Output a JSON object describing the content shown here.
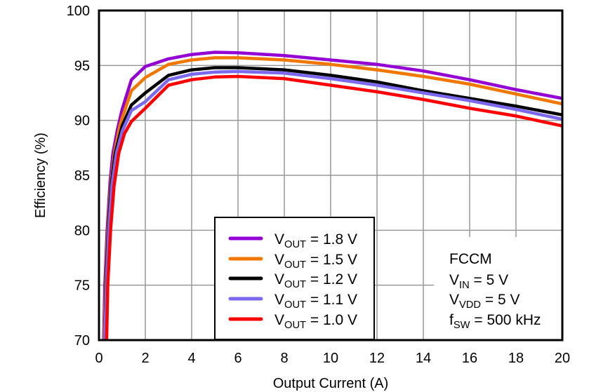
{
  "chart_data": {
    "type": "line",
    "title": "",
    "xlabel": "Output Current (A)",
    "ylabel": "Efficiency (%)",
    "xlim": [
      0,
      20
    ],
    "ylim": [
      70,
      100
    ],
    "xticks": [
      "0",
      "2",
      "4",
      "6",
      "8",
      "10",
      "12",
      "14",
      "16",
      "18",
      "20"
    ],
    "yticks": [
      "70",
      "75",
      "80",
      "85",
      "90",
      "95",
      "100"
    ],
    "grid": true,
    "legend_placement": "bottom-center",
    "series": [
      {
        "name": {
          "main": "V",
          "sub": "OUT",
          "rest": " = 1.8 V"
        },
        "color": "#9400D3",
        "points": [
          [
            0.2,
            70
          ],
          [
            0.25,
            75
          ],
          [
            0.35,
            80
          ],
          [
            0.48,
            84.4
          ],
          [
            0.6,
            87
          ],
          [
            0.8,
            89.2
          ],
          [
            1,
            91
          ],
          [
            1.4,
            93.7
          ],
          [
            2,
            94.9
          ],
          [
            3,
            95.6
          ],
          [
            4,
            96
          ],
          [
            5,
            96.2
          ],
          [
            6,
            96.15
          ],
          [
            8,
            95.9
          ],
          [
            10,
            95.5
          ],
          [
            12,
            95.1
          ],
          [
            14,
            94.5
          ],
          [
            16,
            93.7
          ],
          [
            18,
            92.8
          ],
          [
            20,
            92
          ]
        ]
      },
      {
        "name": {
          "main": "V",
          "sub": "OUT",
          "rest": " = 1.5 V"
        },
        "color": "#F07800",
        "points": [
          [
            0.22,
            70
          ],
          [
            0.28,
            75
          ],
          [
            0.38,
            80
          ],
          [
            0.5,
            84
          ],
          [
            0.67,
            87.1
          ],
          [
            0.9,
            89.5
          ],
          [
            1,
            90.2
          ],
          [
            1.4,
            92.7
          ],
          [
            2,
            93.9
          ],
          [
            3,
            95.1
          ],
          [
            4,
            95.5
          ],
          [
            5,
            95.7
          ],
          [
            6,
            95.7
          ],
          [
            8,
            95.5
          ],
          [
            10,
            95.1
          ],
          [
            12,
            94.6
          ],
          [
            14,
            94
          ],
          [
            16,
            93.3
          ],
          [
            18,
            92.4
          ],
          [
            20,
            91.5
          ]
        ]
      },
      {
        "name": {
          "main": "V",
          "sub": "OUT",
          "rest": " = 1.2 V"
        },
        "color": "#000000",
        "points": [
          [
            0.25,
            70
          ],
          [
            0.3,
            75
          ],
          [
            0.4,
            80
          ],
          [
            0.52,
            84
          ],
          [
            0.7,
            87
          ],
          [
            1,
            89.5
          ],
          [
            1.4,
            91.4
          ],
          [
            2,
            92.5
          ],
          [
            3,
            94.1
          ],
          [
            4,
            94.6
          ],
          [
            5,
            94.8
          ],
          [
            6,
            94.8
          ],
          [
            8,
            94.6
          ],
          [
            10,
            94.1
          ],
          [
            12,
            93.5
          ],
          [
            14,
            92.7
          ],
          [
            16,
            92
          ],
          [
            18,
            91.3
          ],
          [
            20,
            90.5
          ]
        ]
      },
      {
        "name": {
          "main": "V",
          "sub": "OUT",
          "rest": " = 1.1 V"
        },
        "color": "#7B68EE",
        "points": [
          [
            0.25,
            70
          ],
          [
            0.32,
            75
          ],
          [
            0.42,
            80
          ],
          [
            0.55,
            84
          ],
          [
            0.75,
            87
          ],
          [
            1,
            89
          ],
          [
            1.4,
            90.9
          ],
          [
            2,
            91.7
          ],
          [
            3,
            93.7
          ],
          [
            4,
            94.2
          ],
          [
            5,
            94.4
          ],
          [
            6,
            94.45
          ],
          [
            8,
            94.3
          ],
          [
            10,
            93.8
          ],
          [
            12,
            93.2
          ],
          [
            14,
            92.5
          ],
          [
            16,
            91.8
          ],
          [
            18,
            91
          ],
          [
            20,
            90.1
          ]
        ]
      },
      {
        "name": {
          "main": "V",
          "sub": "OUT",
          "rest": " = 1.0 V"
        },
        "color": "#FF0000",
        "points": [
          [
            0.33,
            70
          ],
          [
            0.38,
            75
          ],
          [
            0.5,
            80
          ],
          [
            0.65,
            84
          ],
          [
            0.85,
            87
          ],
          [
            1.1,
            88.8
          ],
          [
            1.4,
            89.9
          ],
          [
            2,
            91.1
          ],
          [
            3,
            93.2
          ],
          [
            4,
            93.7
          ],
          [
            5,
            93.95
          ],
          [
            6,
            94
          ],
          [
            8,
            93.8
          ],
          [
            10,
            93.2
          ],
          [
            12,
            92.6
          ],
          [
            14,
            91.9
          ],
          [
            16,
            91.1
          ],
          [
            18,
            90.4
          ],
          [
            20,
            89.5
          ]
        ]
      }
    ],
    "annotations": [
      {
        "main": "FCCM",
        "sub": "",
        "rest": ""
      },
      {
        "main": "V",
        "sub": "IN",
        "rest": " = 5 V"
      },
      {
        "main": "V",
        "sub": "VDD",
        "rest": " = 5 V"
      },
      {
        "main": "f",
        "sub": "SW",
        "rest": " = 500 kHz"
      }
    ]
  }
}
